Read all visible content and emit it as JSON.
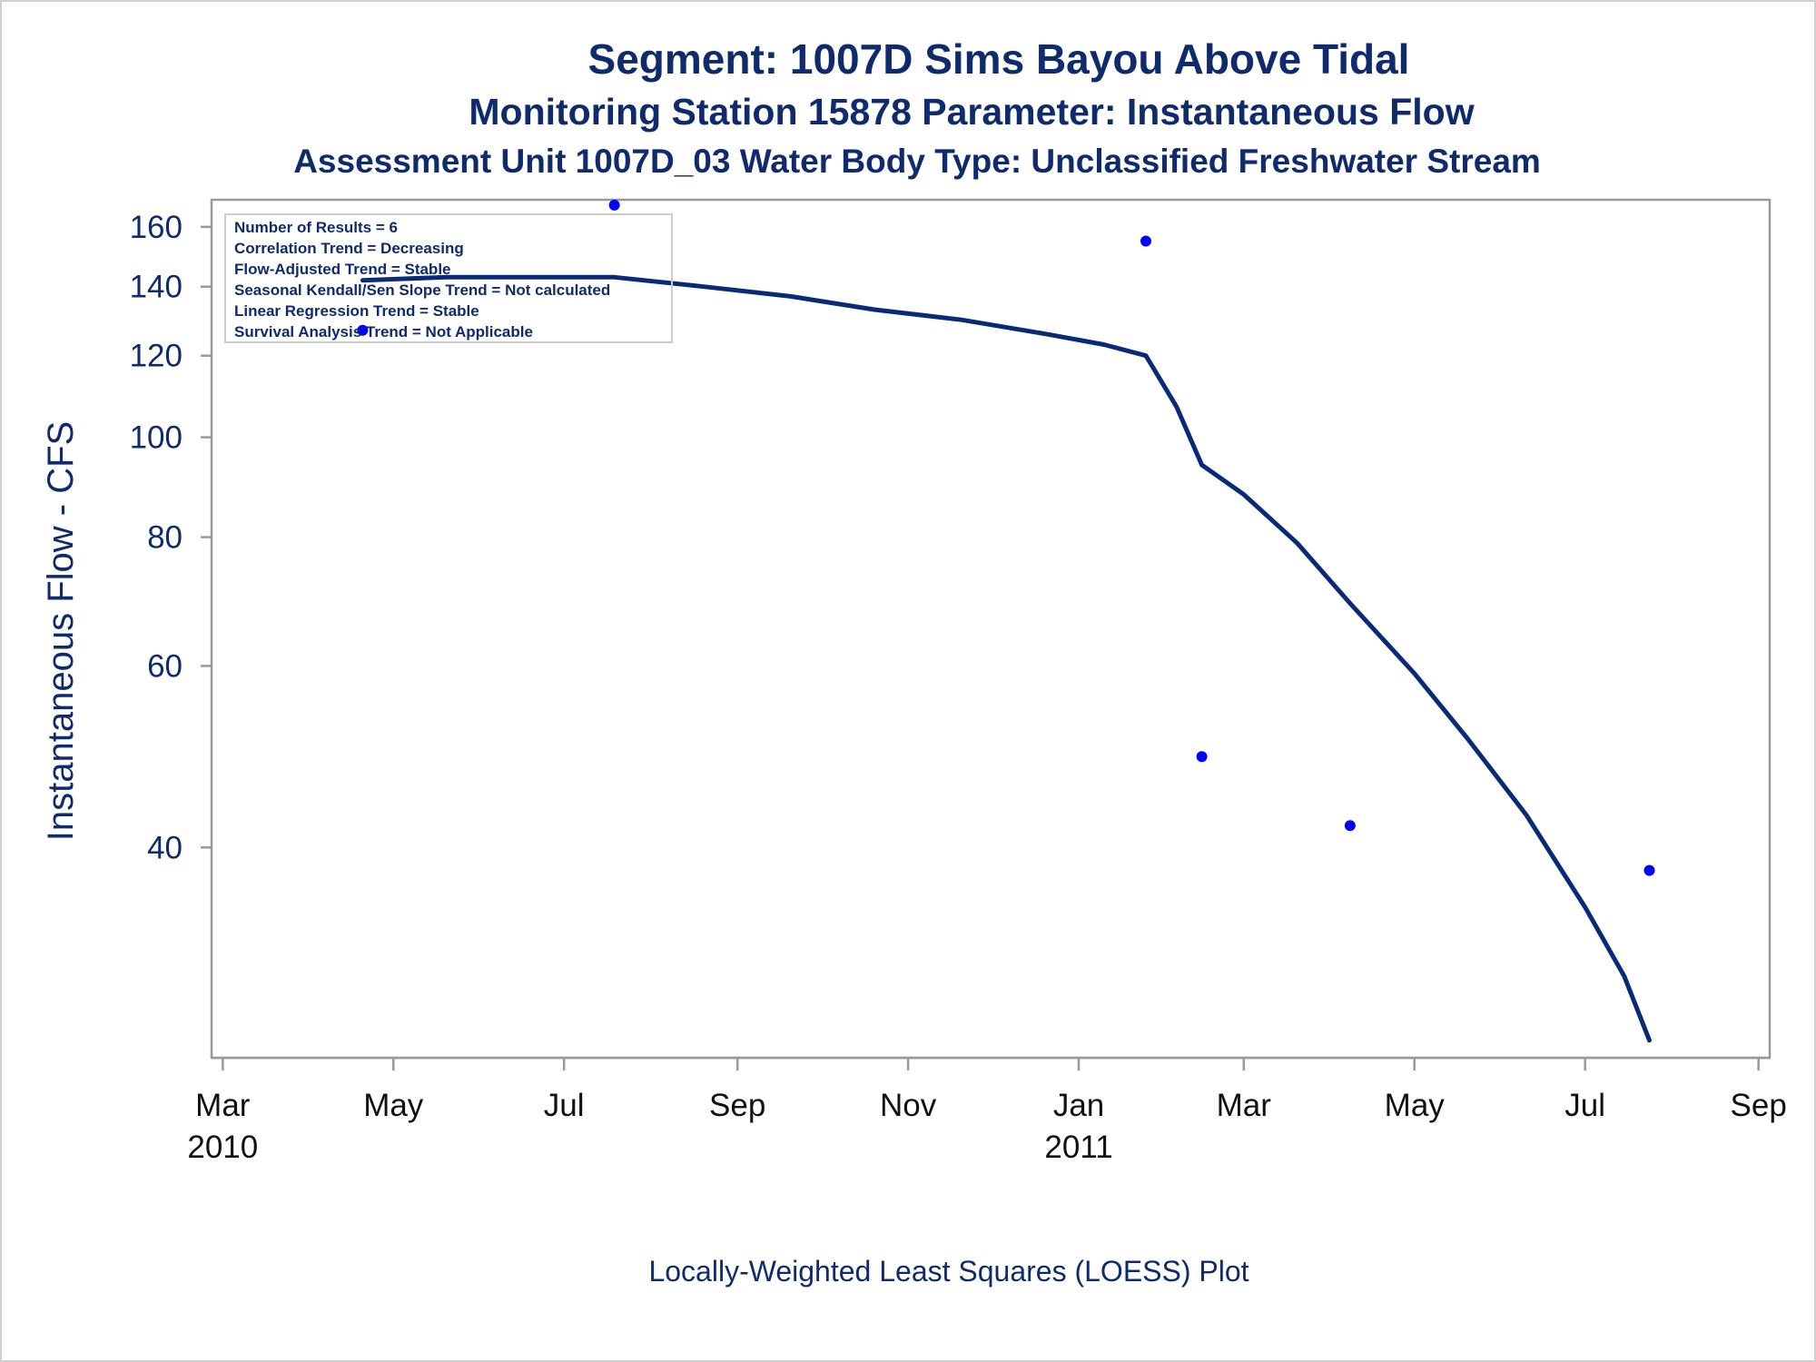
{
  "titles": {
    "line1": "Segment: 1007D  Sims Bayou Above Tidal",
    "line2": "Monitoring Station 15878 Parameter: Instantaneous Flow",
    "line3": "Assessment Unit 1007D_03   Water Body Type: Unclassified Freshwater Stream"
  },
  "info_box": [
    "Number of Results = 6",
    "Correlation Trend = Decreasing",
    "Flow-Adjusted Trend = Stable",
    "Seasonal Kendall/Sen Slope Trend = Not calculated",
    "Linear Regression Trend = Stable",
    "Survival Analysis Trend = Not Applicable"
  ],
  "footnote": "Locally-Weighted Least Squares (LOESS) Plot",
  "colors": {
    "title": "#0f2b6e",
    "loess_line": "#0a2a78",
    "points": "#0000ff",
    "axis": "#999999"
  },
  "chart_data": {
    "type": "scatter",
    "title": "Segment: 1007D  Sims Bayou Above Tidal",
    "xlabel": "",
    "ylabel": "Instantaneous Flow - CFS",
    "y_scale": "log",
    "xlim": [
      "2010-02-25",
      "2011-09-05"
    ],
    "ylim": [
      25,
      170
    ],
    "x_ticks": [
      {
        "date": "2010-03-01",
        "label": "Mar",
        "year": "2010"
      },
      {
        "date": "2010-05-01",
        "label": "May",
        "year": ""
      },
      {
        "date": "2010-07-01",
        "label": "Jul",
        "year": ""
      },
      {
        "date": "2010-09-01",
        "label": "Sep",
        "year": ""
      },
      {
        "date": "2010-11-01",
        "label": "Nov",
        "year": ""
      },
      {
        "date": "2011-01-01",
        "label": "Jan",
        "year": "2011"
      },
      {
        "date": "2011-03-01",
        "label": "Mar",
        "year": ""
      },
      {
        "date": "2011-05-01",
        "label": "May",
        "year": ""
      },
      {
        "date": "2011-07-01",
        "label": "Jul",
        "year": ""
      },
      {
        "date": "2011-09-01",
        "label": "Sep",
        "year": ""
      }
    ],
    "y_ticks": [
      40,
      60,
      80,
      100,
      120,
      140,
      160
    ],
    "grid": false,
    "series": [
      {
        "kind": "points",
        "points": [
          {
            "date": "2010-04-20",
            "value": 127
          },
          {
            "date": "2010-07-19",
            "value": 168
          },
          {
            "date": "2011-01-25",
            "value": 155
          },
          {
            "date": "2011-02-14",
            "value": 49
          },
          {
            "date": "2011-04-08",
            "value": 42
          },
          {
            "date": "2011-07-24",
            "value": 38
          }
        ]
      },
      {
        "kind": "loess",
        "points": [
          {
            "date": "2010-04-20",
            "value": 142
          },
          {
            "date": "2010-05-20",
            "value": 143
          },
          {
            "date": "2010-07-19",
            "value": 143
          },
          {
            "date": "2010-08-20",
            "value": 140
          },
          {
            "date": "2010-09-20",
            "value": 137
          },
          {
            "date": "2010-10-20",
            "value": 133
          },
          {
            "date": "2010-11-20",
            "value": 130
          },
          {
            "date": "2010-12-20",
            "value": 126
          },
          {
            "date": "2011-01-10",
            "value": 123
          },
          {
            "date": "2011-01-25",
            "value": 120
          },
          {
            "date": "2011-02-05",
            "value": 107
          },
          {
            "date": "2011-02-14",
            "value": 94
          },
          {
            "date": "2011-03-01",
            "value": 88
          },
          {
            "date": "2011-03-20",
            "value": 79
          },
          {
            "date": "2011-04-08",
            "value": 69
          },
          {
            "date": "2011-05-01",
            "value": 59
          },
          {
            "date": "2011-05-20",
            "value": 51
          },
          {
            "date": "2011-06-10",
            "value": 43
          },
          {
            "date": "2011-07-01",
            "value": 35
          },
          {
            "date": "2011-07-15",
            "value": 30
          },
          {
            "date": "2011-07-24",
            "value": 26
          }
        ]
      }
    ]
  }
}
